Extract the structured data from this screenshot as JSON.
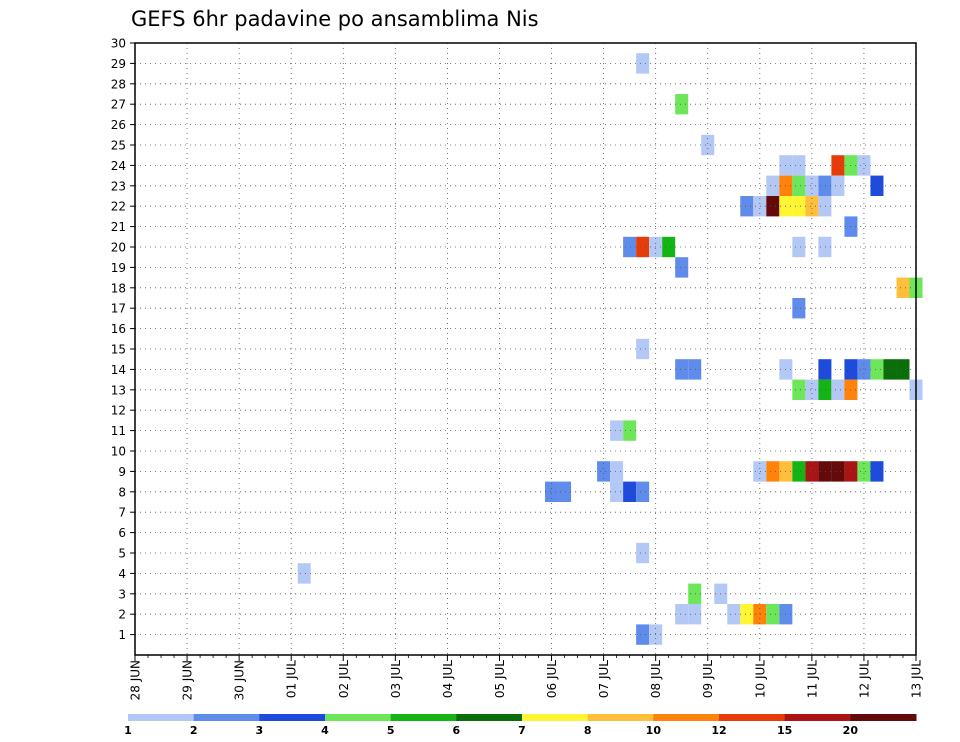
{
  "chart_data": {
    "type": "heatmap",
    "title": "GEFS 6hr padavine po ansamblima Nis",
    "xlabel": "",
    "ylabel": "",
    "x_ticks": [
      "28 JUN",
      "29 JUN",
      "30 JUN",
      "01 JUL",
      "02 JUL",
      "03 JUL",
      "04 JUL",
      "05 JUL",
      "06 JUL",
      "07 JUL",
      "08 JUL",
      "09 JUL",
      "10 JUL",
      "11 JUL",
      "12 JUL",
      "13 JUL"
    ],
    "y_ticks": [
      "1",
      "2",
      "3",
      "4",
      "5",
      "6",
      "7",
      "8",
      "9",
      "10",
      "11",
      "12",
      "13",
      "14",
      "15",
      "16",
      "17",
      "18",
      "19",
      "20",
      "21",
      "22",
      "23",
      "24",
      "25",
      "26",
      "27",
      "28",
      "29",
      "30"
    ],
    "x_unit": "6-hour steps from 28 JUN 00Z (4 per day)",
    "ylim": [
      0,
      30
    ],
    "grid": true,
    "legend": "bottom",
    "colorbar": {
      "labels": [
        "1",
        "2",
        "3",
        "4",
        "5",
        "6",
        "7",
        "8",
        "10",
        "12",
        "15",
        "20"
      ],
      "colors": [
        "#b4c8f5",
        "#5f8ceb",
        "#1e4bdc",
        "#6ee65a",
        "#14b414",
        "#0a6e0a",
        "#fff532",
        "#ffbe3c",
        "#ff820a",
        "#e63c0a",
        "#aa1414",
        "#640a0a"
      ]
    },
    "cells": [
      {
        "t": 39,
        "m": 29,
        "c": 0
      },
      {
        "t": 42,
        "m": 27,
        "c": 3
      },
      {
        "t": 44,
        "m": 25,
        "c": 0
      },
      {
        "t": 50,
        "m": 24,
        "c": 0
      },
      {
        "t": 51,
        "m": 24,
        "c": 0
      },
      {
        "t": 54,
        "m": 24,
        "c": 9
      },
      {
        "t": 55,
        "m": 24,
        "c": 3
      },
      {
        "t": 56,
        "m": 24,
        "c": 0
      },
      {
        "t": 49,
        "m": 23,
        "c": 0
      },
      {
        "t": 50,
        "m": 23,
        "c": 8
      },
      {
        "t": 51,
        "m": 23,
        "c": 3
      },
      {
        "t": 52,
        "m": 23,
        "c": 0
      },
      {
        "t": 53,
        "m": 23,
        "c": 1
      },
      {
        "t": 54,
        "m": 23,
        "c": 0
      },
      {
        "t": 57,
        "m": 23,
        "c": 2
      },
      {
        "t": 47,
        "m": 22,
        "c": 1
      },
      {
        "t": 48,
        "m": 22,
        "c": 0
      },
      {
        "t": 49,
        "m": 22,
        "c": 11
      },
      {
        "t": 50,
        "m": 22,
        "c": 6
      },
      {
        "t": 51,
        "m": 22,
        "c": 6
      },
      {
        "t": 52,
        "m": 22,
        "c": 7
      },
      {
        "t": 53,
        "m": 22,
        "c": 0
      },
      {
        "t": 55,
        "m": 21,
        "c": 1
      },
      {
        "t": 38,
        "m": 20,
        "c": 1
      },
      {
        "t": 39,
        "m": 20,
        "c": 9
      },
      {
        "t": 40,
        "m": 20,
        "c": 0
      },
      {
        "t": 41,
        "m": 20,
        "c": 4
      },
      {
        "t": 51,
        "m": 20,
        "c": 0
      },
      {
        "t": 53,
        "m": 20,
        "c": 0
      },
      {
        "t": 42,
        "m": 19,
        "c": 1
      },
      {
        "t": 59,
        "m": 18,
        "c": 7
      },
      {
        "t": 60,
        "m": 18,
        "c": 3
      },
      {
        "t": 51,
        "m": 17,
        "c": 1
      },
      {
        "t": 39,
        "m": 15,
        "c": 0
      },
      {
        "t": 42,
        "m": 14,
        "c": 1
      },
      {
        "t": 43,
        "m": 14,
        "c": 1
      },
      {
        "t": 50,
        "m": 14,
        "c": 0
      },
      {
        "t": 53,
        "m": 14,
        "c": 2
      },
      {
        "t": 55,
        "m": 14,
        "c": 2
      },
      {
        "t": 56,
        "m": 14,
        "c": 1
      },
      {
        "t": 57,
        "m": 14,
        "c": 3
      },
      {
        "t": 58,
        "m": 14,
        "c": 5
      },
      {
        "t": 59,
        "m": 14,
        "c": 5
      },
      {
        "t": 51,
        "m": 13,
        "c": 3
      },
      {
        "t": 52,
        "m": 13,
        "c": 0
      },
      {
        "t": 53,
        "m": 13,
        "c": 4
      },
      {
        "t": 54,
        "m": 13,
        "c": 0
      },
      {
        "t": 55,
        "m": 13,
        "c": 8
      },
      {
        "t": 60,
        "m": 13,
        "c": 0
      },
      {
        "t": 37,
        "m": 11,
        "c": 0
      },
      {
        "t": 38,
        "m": 11,
        "c": 3
      },
      {
        "t": 36,
        "m": 9,
        "c": 1
      },
      {
        "t": 37,
        "m": 9,
        "c": 0
      },
      {
        "t": 48,
        "m": 9,
        "c": 0
      },
      {
        "t": 49,
        "m": 9,
        "c": 8
      },
      {
        "t": 50,
        "m": 9,
        "c": 7
      },
      {
        "t": 51,
        "m": 9,
        "c": 4
      },
      {
        "t": 52,
        "m": 9,
        "c": 10
      },
      {
        "t": 53,
        "m": 9,
        "c": 11
      },
      {
        "t": 54,
        "m": 9,
        "c": 11
      },
      {
        "t": 55,
        "m": 9,
        "c": 10
      },
      {
        "t": 56,
        "m": 9,
        "c": 3
      },
      {
        "t": 57,
        "m": 9,
        "c": 2
      },
      {
        "t": 32,
        "m": 8,
        "c": 1
      },
      {
        "t": 33,
        "m": 8,
        "c": 1
      },
      {
        "t": 37,
        "m": 8,
        "c": 0
      },
      {
        "t": 38,
        "m": 8,
        "c": 2
      },
      {
        "t": 39,
        "m": 8,
        "c": 1
      },
      {
        "t": 39,
        "m": 5,
        "c": 0
      },
      {
        "t": 13,
        "m": 4,
        "c": 0
      },
      {
        "t": 43,
        "m": 3,
        "c": 3
      },
      {
        "t": 45,
        "m": 3,
        "c": 0
      },
      {
        "t": 42,
        "m": 2,
        "c": 0
      },
      {
        "t": 43,
        "m": 2,
        "c": 0
      },
      {
        "t": 46,
        "m": 2,
        "c": 0
      },
      {
        "t": 47,
        "m": 2,
        "c": 6
      },
      {
        "t": 48,
        "m": 2,
        "c": 8
      },
      {
        "t": 49,
        "m": 2,
        "c": 3
      },
      {
        "t": 50,
        "m": 2,
        "c": 1
      },
      {
        "t": 39,
        "m": 1,
        "c": 1
      },
      {
        "t": 40,
        "m": 1,
        "c": 0
      }
    ]
  }
}
